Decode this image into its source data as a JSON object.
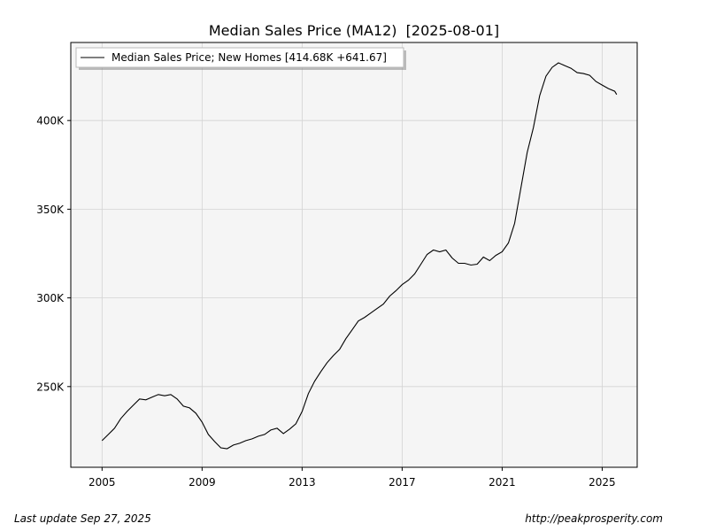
{
  "chart_data": {
    "type": "line",
    "title": "Median Sales Price (MA12)  [2025-08-01]",
    "xlabel": "",
    "ylabel": "",
    "xlim": [
      2003.75,
      2026.4
    ],
    "ylim": [
      204500,
      444000
    ],
    "x_ticks": [
      2005,
      2009,
      2013,
      2017,
      2021,
      2025
    ],
    "x_tick_labels": [
      "2005",
      "2009",
      "2013",
      "2017",
      "2021",
      "2025"
    ],
    "y_ticks": [
      250000,
      300000,
      350000,
      400000
    ],
    "y_tick_labels": [
      "250K",
      "300K",
      "350K",
      "400K"
    ],
    "grid": true,
    "legend": "top-left",
    "series": [
      {
        "name": "Median Sales Price; New Homes [414.68K +641.67]",
        "color": "#000000",
        "points": [
          [
            2005.0,
            219500
          ],
          [
            2005.25,
            223000
          ],
          [
            2005.5,
            226500
          ],
          [
            2005.75,
            232000
          ],
          [
            2006.0,
            236000
          ],
          [
            2006.25,
            239500
          ],
          [
            2006.5,
            243000
          ],
          [
            2006.75,
            242500
          ],
          [
            2007.0,
            244000
          ],
          [
            2007.25,
            245500
          ],
          [
            2007.5,
            244800
          ],
          [
            2007.75,
            245500
          ],
          [
            2008.0,
            243000
          ],
          [
            2008.25,
            239000
          ],
          [
            2008.5,
            238000
          ],
          [
            2008.75,
            235000
          ],
          [
            2009.0,
            230000
          ],
          [
            2009.25,
            223000
          ],
          [
            2009.5,
            219000
          ],
          [
            2009.75,
            215500
          ],
          [
            2010.0,
            215000
          ],
          [
            2010.25,
            217000
          ],
          [
            2010.5,
            218000
          ],
          [
            2010.75,
            219500
          ],
          [
            2011.0,
            220500
          ],
          [
            2011.25,
            222000
          ],
          [
            2011.5,
            223000
          ],
          [
            2011.75,
            225500
          ],
          [
            2012.0,
            226500
          ],
          [
            2012.25,
            223500
          ],
          [
            2012.5,
            226000
          ],
          [
            2012.75,
            229000
          ],
          [
            2013.0,
            236000
          ],
          [
            2013.25,
            246000
          ],
          [
            2013.5,
            253000
          ],
          [
            2013.75,
            258500
          ],
          [
            2014.0,
            263500
          ],
          [
            2014.25,
            267500
          ],
          [
            2014.5,
            271000
          ],
          [
            2014.75,
            277000
          ],
          [
            2015.0,
            282000
          ],
          [
            2015.25,
            287000
          ],
          [
            2015.5,
            289000
          ],
          [
            2015.75,
            291500
          ],
          [
            2016.0,
            294000
          ],
          [
            2016.25,
            296500
          ],
          [
            2016.5,
            301000
          ],
          [
            2016.75,
            304000
          ],
          [
            2017.0,
            307500
          ],
          [
            2017.25,
            310000
          ],
          [
            2017.5,
            313500
          ],
          [
            2017.75,
            319000
          ],
          [
            2018.0,
            324500
          ],
          [
            2018.25,
            327000
          ],
          [
            2018.5,
            326000
          ],
          [
            2018.75,
            327000
          ],
          [
            2019.0,
            322500
          ],
          [
            2019.25,
            319500
          ],
          [
            2019.5,
            319500
          ],
          [
            2019.75,
            318500
          ],
          [
            2020.0,
            319000
          ],
          [
            2020.25,
            323000
          ],
          [
            2020.5,
            321000
          ],
          [
            2020.75,
            324000
          ],
          [
            2021.0,
            326000
          ],
          [
            2021.25,
            331000
          ],
          [
            2021.5,
            342000
          ],
          [
            2021.75,
            362000
          ],
          [
            2022.0,
            382000
          ],
          [
            2022.25,
            396000
          ],
          [
            2022.5,
            414000
          ],
          [
            2022.75,
            425000
          ],
          [
            2023.0,
            430000
          ],
          [
            2023.25,
            432500
          ],
          [
            2023.5,
            431000
          ],
          [
            2023.75,
            429500
          ],
          [
            2024.0,
            427000
          ],
          [
            2024.25,
            426500
          ],
          [
            2024.5,
            425500
          ],
          [
            2024.75,
            422000
          ],
          [
            2025.0,
            420000
          ],
          [
            2025.25,
            418000
          ],
          [
            2025.5,
            416500
          ],
          [
            2025.58,
            414680
          ]
        ]
      }
    ]
  },
  "footer": {
    "last_update": "Last update Sep 27, 2025",
    "source": "http://peakprosperity.com"
  },
  "colors": {
    "plot_background": "#f5f5f5",
    "grid": "#d3d3d3",
    "line": "#000000"
  }
}
